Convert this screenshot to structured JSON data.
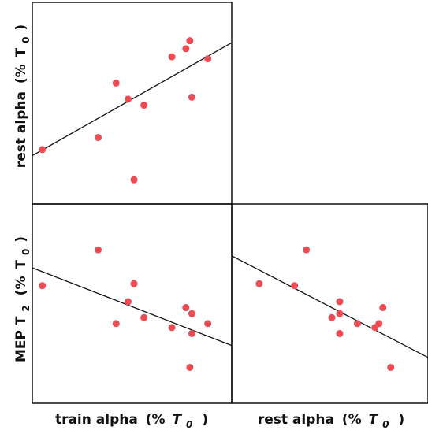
{
  "axis_titles": {
    "rows": [
      {
        "main": "rest alpha",
        "open": "(%",
        "var": "T",
        "sub": "0",
        "close": ")"
      },
      {
        "main": "MEP T",
        "sub1": "2",
        "open": "(%",
        "var": "T",
        "sub": "0",
        "close": ")"
      }
    ],
    "cols": [
      {
        "main": "train alpha",
        "open": "(%",
        "var": "T",
        "sub": "0",
        "close": ")"
      },
      {
        "main": "rest alpha",
        "open": "(%",
        "var": "T",
        "sub": "0",
        "close": ")"
      }
    ]
  },
  "chart_data": [
    {
      "type": "scatter",
      "panel": "row1-col1",
      "xlabel": "train alpha (% T0)",
      "ylabel": "rest alpha (% T0)",
      "xlim": [
        0,
        100
      ],
      "ylim": [
        0,
        100
      ],
      "points": [
        {
          "x": 5,
          "y": 27
        },
        {
          "x": 33,
          "y": 33
        },
        {
          "x": 42,
          "y": 60
        },
        {
          "x": 48,
          "y": 52
        },
        {
          "x": 51,
          "y": 12
        },
        {
          "x": 56,
          "y": 49
        },
        {
          "x": 70,
          "y": 73
        },
        {
          "x": 77,
          "y": 77
        },
        {
          "x": 79,
          "y": 81
        },
        {
          "x": 80,
          "y": 53
        },
        {
          "x": 88,
          "y": 72
        }
      ],
      "fit_line": {
        "x": [
          0,
          100
        ],
        "y": [
          24,
          80
        ]
      }
    },
    {
      "type": "scatter",
      "panel": "row2-col1",
      "xlabel": "train alpha (% T0)",
      "ylabel": "MEP T2 (% T0)",
      "xlim": [
        0,
        100
      ],
      "ylim": [
        0,
        100
      ],
      "points": [
        {
          "x": 5,
          "y": 59
        },
        {
          "x": 33,
          "y": 77
        },
        {
          "x": 42,
          "y": 40
        },
        {
          "x": 48,
          "y": 51
        },
        {
          "x": 51,
          "y": 60
        },
        {
          "x": 56,
          "y": 43
        },
        {
          "x": 70,
          "y": 38
        },
        {
          "x": 77,
          "y": 48
        },
        {
          "x": 79,
          "y": 18
        },
        {
          "x": 80,
          "y": 35
        },
        {
          "x": 80,
          "y": 45
        },
        {
          "x": 88,
          "y": 40
        }
      ],
      "fit_line": {
        "x": [
          0,
          100
        ],
        "y": [
          68,
          29
        ]
      }
    },
    {
      "type": "scatter",
      "panel": "row2-col2",
      "xlabel": "rest alpha (% T0)",
      "ylabel": "MEP T2 (% T0)",
      "xlim": [
        0,
        100
      ],
      "ylim": [
        0,
        100
      ],
      "points": [
        {
          "x": 14,
          "y": 60
        },
        {
          "x": 32,
          "y": 59
        },
        {
          "x": 38,
          "y": 77
        },
        {
          "x": 51,
          "y": 43
        },
        {
          "x": 55,
          "y": 51
        },
        {
          "x": 55,
          "y": 45
        },
        {
          "x": 55,
          "y": 35
        },
        {
          "x": 64,
          "y": 40
        },
        {
          "x": 73,
          "y": 38
        },
        {
          "x": 75,
          "y": 40
        },
        {
          "x": 77,
          "y": 48
        },
        {
          "x": 81,
          "y": 18
        }
      ],
      "fit_line": {
        "x": [
          0,
          100
        ],
        "y": [
          74,
          23
        ]
      }
    }
  ]
}
